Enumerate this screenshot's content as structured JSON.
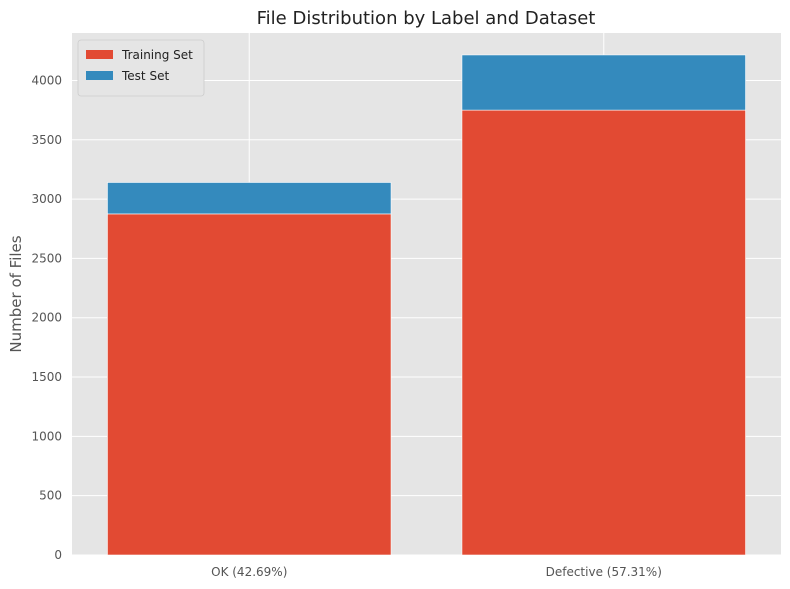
{
  "chart_data": {
    "type": "bar",
    "stacked": true,
    "title": "File Distribution by Label and Dataset",
    "xlabel": "",
    "ylabel": "Number of Files",
    "categories": [
      "OK (42.69%)",
      "Defective (57.31%)"
    ],
    "series": [
      {
        "name": "Training Set",
        "color": "#E24A33",
        "values": [
          2875,
          3750
        ]
      },
      {
        "name": "Test Set",
        "color": "#348ABD",
        "values": [
          265,
          465
        ]
      }
    ],
    "ylim": [
      0,
      4400
    ],
    "yticks": [
      0,
      500,
      1000,
      1500,
      2000,
      2500,
      3000,
      3500,
      4000
    ],
    "grid": true,
    "legend_position": "top-left",
    "background_color": "#E5E5E5",
    "grid_color": "#FFFFFF"
  }
}
